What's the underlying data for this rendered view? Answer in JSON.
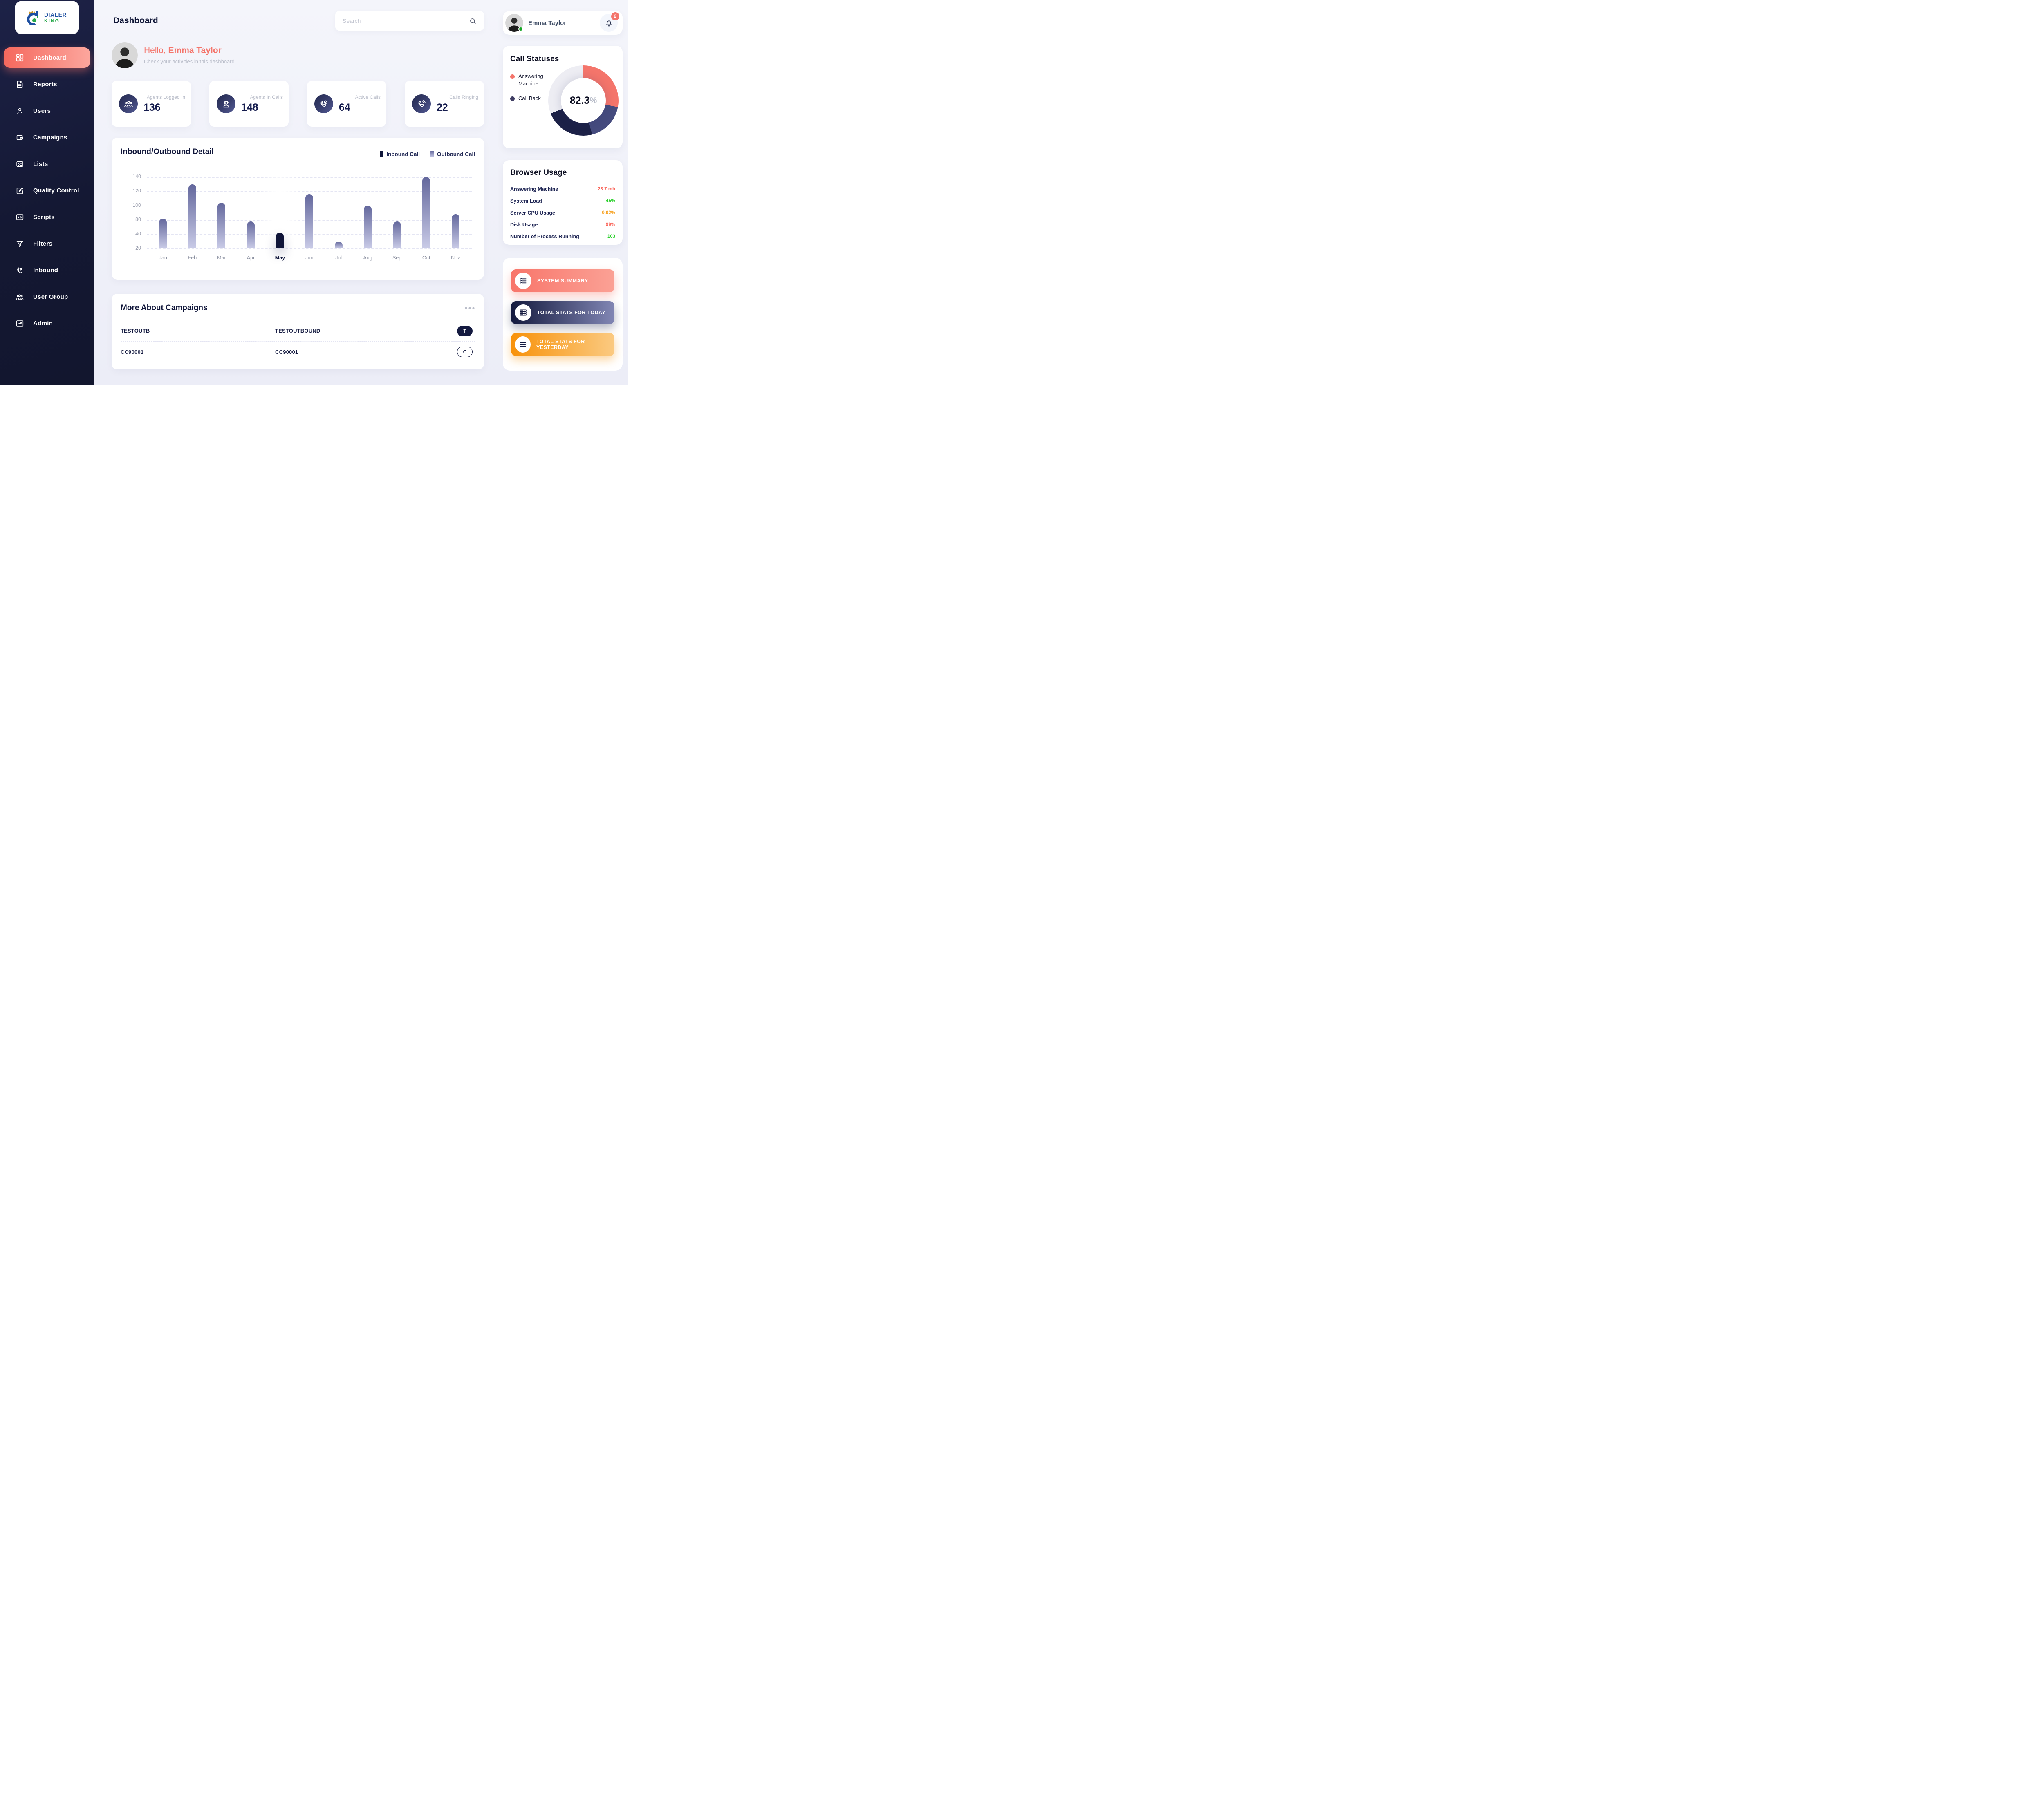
{
  "brand": {
    "line1": "DIALER",
    "line2": "KING"
  },
  "sidebar": {
    "items": [
      {
        "label": "Dashboard",
        "icon": "dashboard-grid-icon",
        "active": true
      },
      {
        "label": "Reports",
        "icon": "report-doc-icon",
        "active": false
      },
      {
        "label": "Users",
        "icon": "user-icon",
        "active": false
      },
      {
        "label": "Campaigns",
        "icon": "wallet-icon",
        "active": false
      },
      {
        "label": "Lists",
        "icon": "list-check-icon",
        "active": false
      },
      {
        "label": "Quality Control",
        "icon": "edit-square-icon",
        "active": false
      },
      {
        "label": "Scripts",
        "icon": "code-window-icon",
        "active": false
      },
      {
        "label": "Filters",
        "icon": "funnel-icon",
        "active": false
      },
      {
        "label": "Inbound",
        "icon": "phone-inbound-icon",
        "active": false
      },
      {
        "label": "User Group",
        "icon": "user-group-icon",
        "active": false
      },
      {
        "label": "Admin",
        "icon": "admin-window-icon",
        "active": false
      }
    ]
  },
  "header": {
    "title": "Dashboard",
    "search_placeholder": "Search"
  },
  "user_chip": {
    "name": "Emma Taylor",
    "notification_count": "2"
  },
  "greeting": {
    "hello": "Hello, ",
    "name": "Emma Taylor",
    "subtitle": "Check your activities in this dashboard."
  },
  "stats": [
    {
      "label": "Agents Logged In",
      "value": "136",
      "icon": "agents-group-icon"
    },
    {
      "label": "Agents In Calls",
      "value": "148",
      "icon": "agent-headset-icon"
    },
    {
      "label": "Active Calls",
      "value": "64",
      "icon": "phone-check-icon"
    },
    {
      "label": "Calls Ringing",
      "value": "22",
      "icon": "phone-ring-icon"
    }
  ],
  "chart_data": {
    "type": "bar",
    "title": "Inbound/Outbound Detail",
    "legend": [
      {
        "label": "Inbound Call",
        "swatch": "solid",
        "color": "#10163a"
      },
      {
        "label": "Outbound Call",
        "swatch": "gradient",
        "color_top": "#63679c",
        "color_bottom": "#c9cbe7"
      }
    ],
    "legend_position": "top-right",
    "categories": [
      "Jan",
      "Feb",
      "Mar",
      "Apr",
      "May",
      "Jun",
      "Jul",
      "Aug",
      "Sep",
      "Oct",
      "Nov"
    ],
    "values": [
      82,
      130,
      104,
      75,
      45,
      116,
      30,
      100,
      75,
      140,
      88
    ],
    "bar_series": [
      "Outbound Call",
      "Outbound Call",
      "Outbound Call",
      "Outbound Call",
      "Inbound Call",
      "Outbound Call",
      "Outbound Call",
      "Outbound Call",
      "Outbound Call",
      "Outbound Call",
      "Outbound Call"
    ],
    "highlight_category": "May",
    "ytick_labels_top_to_bottom": [
      "140",
      "120",
      "100",
      "80",
      "40",
      "20"
    ],
    "yticks_ascending": [
      20,
      40,
      80,
      100,
      120,
      140
    ],
    "baseline": 20,
    "grid": "horizontal dashed",
    "xlabel": "",
    "ylabel": ""
  },
  "call_statuses": {
    "title": "Call Statuses",
    "legend": [
      {
        "label": "Answering Machine",
        "color": "#f4756b"
      },
      {
        "label": "Call Back",
        "color": "#3f3d63"
      }
    ],
    "center_value": "82.3",
    "center_unit": "%",
    "donut": {
      "type": "pie",
      "segments": [
        {
          "name": "Answering Machine",
          "percent": 28,
          "color": "#f4756b"
        },
        {
          "name": "Call Back",
          "percent": 41,
          "color": "#2a3059"
        }
      ],
      "track_color": "#ededf3",
      "conic_stops": [
        [
          "#f4756b",
          "0%",
          "28%"
        ],
        [
          "#454b7e",
          "28%",
          "46%"
        ],
        [
          "#1c2147",
          "46%",
          "69%"
        ],
        [
          "#ededf3",
          "69%",
          "100%"
        ]
      ]
    }
  },
  "browser_usage": {
    "title": "Browser Usage",
    "rows": [
      {
        "label": "Answering Machine",
        "value": "23.7 mb",
        "color": "#fa6a5f"
      },
      {
        "label": "System Load",
        "value": "45%",
        "color": "#2bd02c"
      },
      {
        "label": "Server CPU Usage",
        "value": "0.02%",
        "color": "#f7a325"
      },
      {
        "label": "Disk Usage",
        "value": "99%",
        "color": "#fa6a5f"
      },
      {
        "label": "Number of Process Running",
        "value": "103",
        "color": "#2bd02c"
      }
    ]
  },
  "campaigns": {
    "title": "More About Campaigns",
    "menu_icon": "ellipsis-icon",
    "rows": [
      {
        "col1": "TESTOUTB",
        "col2": "TESTOUTBOUND",
        "badge": "T",
        "badge_style": "filled"
      },
      {
        "col1": "CC90001",
        "col2": "CC90001",
        "badge": "C",
        "badge_style": "outline"
      }
    ]
  },
  "actions": [
    {
      "label": "SYSTEM SUMMARY",
      "icon": "checklist-icon",
      "gradient": [
        "#f8756a",
        "#fba195"
      ],
      "shadow": "rgba(248,117,106,.38)"
    },
    {
      "label": "TOTAL STATS FOR TODAY",
      "icon": "server-stack-icon",
      "gradient": [
        "#141a3e",
        "#8186b4"
      ],
      "shadow": "rgba(20,26,62,.32)"
    },
    {
      "label": "TOTAL STATS FOR YESTERDAY",
      "icon": "menu-lines-icon",
      "gradient": [
        "#f8920a",
        "#fbca81"
      ],
      "shadow": "rgba(248,146,10,.38)"
    }
  ]
}
